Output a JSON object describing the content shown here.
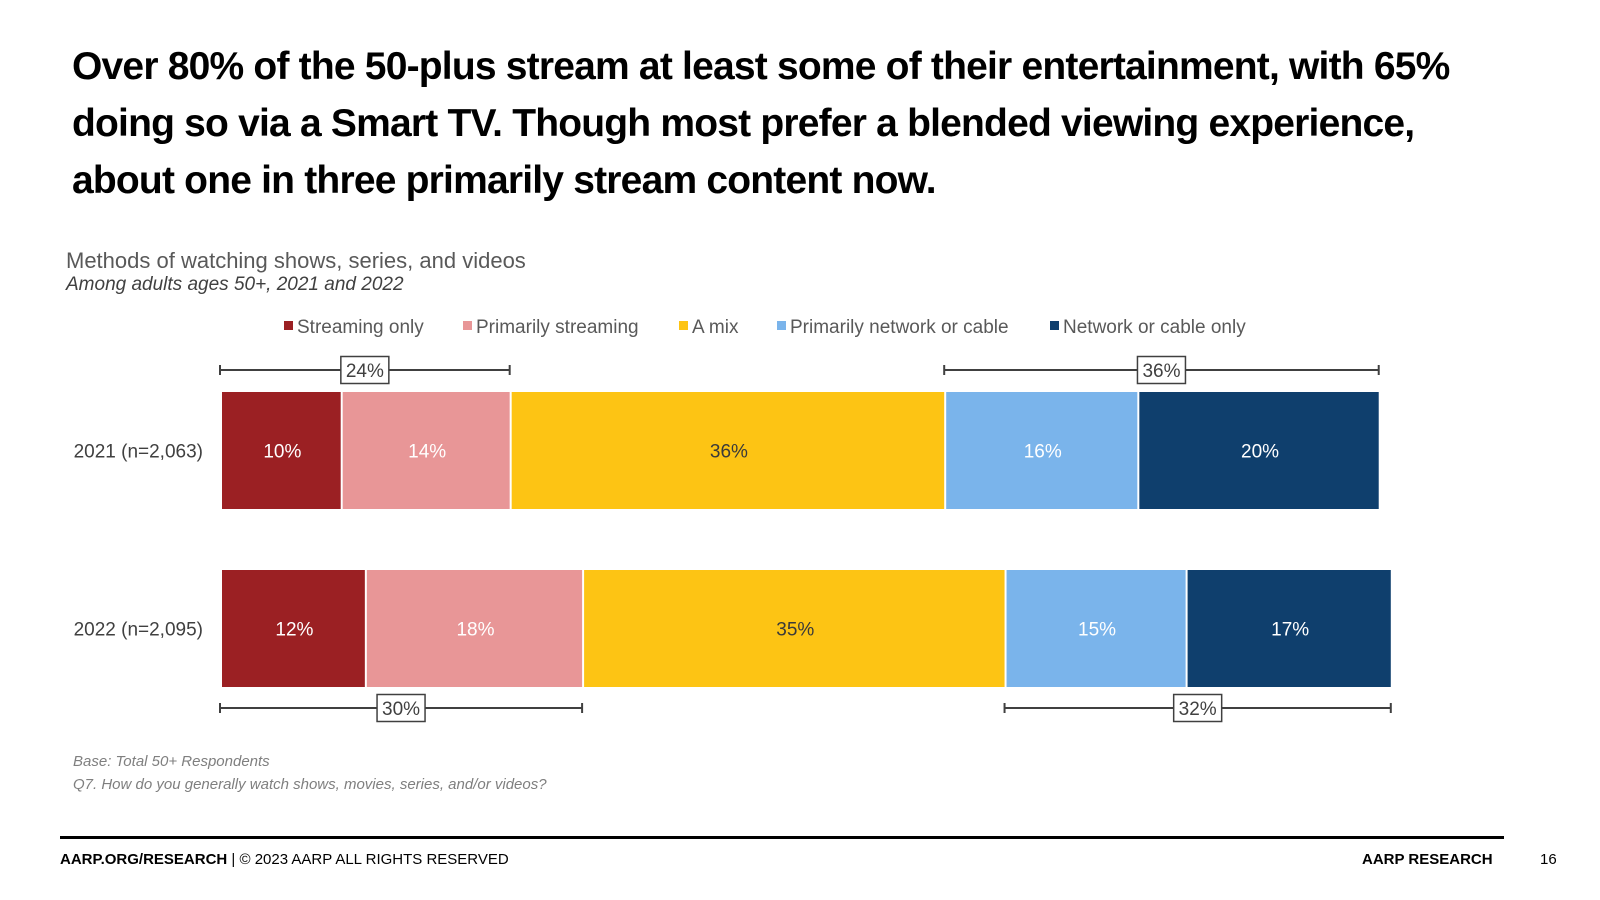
{
  "headline_lines": [
    "Over 80% of the 50-plus stream at least some of their entertainment, with 65%",
    "doing so via a Smart TV. Though most prefer a blended viewing experience,",
    "about one in three primarily stream content now."
  ],
  "chart_data": {
    "type": "bar",
    "orientation": "horizontal",
    "stacked": true,
    "title": "Methods of watching shows, series, and videos",
    "subtitle": "Among adults ages 50+, 2021 and 2022",
    "categories": [
      "2021 (n=2,063)",
      "2022 (n=2,095)"
    ],
    "series": [
      {
        "name": "Streaming only",
        "color": "#9b2023",
        "label_color": "#ffffff",
        "values": [
          10,
          12
        ],
        "labels": [
          "10%",
          "12%"
        ]
      },
      {
        "name": "Primarily streaming",
        "color": "#e89697",
        "label_color": "#ffffff",
        "values": [
          14,
          18
        ],
        "labels": [
          "14%",
          "18%"
        ]
      },
      {
        "name": "A mix",
        "color": "#fdc414",
        "label_color": "#3a3a3a",
        "values": [
          36,
          35
        ],
        "labels": [
          "36%",
          "35%"
        ]
      },
      {
        "name": "Primarily network or cable",
        "color": "#7ab4eb",
        "label_color": "#ffffff",
        "values": [
          16,
          15
        ],
        "labels": [
          "16%",
          "15%"
        ]
      },
      {
        "name": "Network or cable only",
        "color": "#0f3f6d",
        "label_color": "#ffffff",
        "values": [
          20,
          17
        ],
        "labels": [
          "20%",
          "17%"
        ]
      }
    ],
    "brackets": [
      {
        "label": "24%",
        "row": 0,
        "side": "above",
        "from_series": 0,
        "to_series": 1
      },
      {
        "label": "36%",
        "row": 0,
        "side": "above",
        "from_series": 3,
        "to_series": 4
      },
      {
        "label": "30%",
        "row": 1,
        "side": "below",
        "from_series": 0,
        "to_series": 1
      },
      {
        "label": "32%",
        "row": 1,
        "side": "below",
        "from_series": 3,
        "to_series": 4
      }
    ],
    "legend_position": "top",
    "xlim": [
      0,
      100
    ]
  },
  "notes": {
    "base": "Base: Total 50+ Respondents",
    "question": "Q7. How do you generally watch shows, movies, series, and/or videos?"
  },
  "footer": {
    "site": "AARP.ORG/RESEARCH",
    "rights": " | © 2023 AARP ALL RIGHTS RESERVED",
    "brand": "AARP RESEARCH",
    "page": "16"
  }
}
